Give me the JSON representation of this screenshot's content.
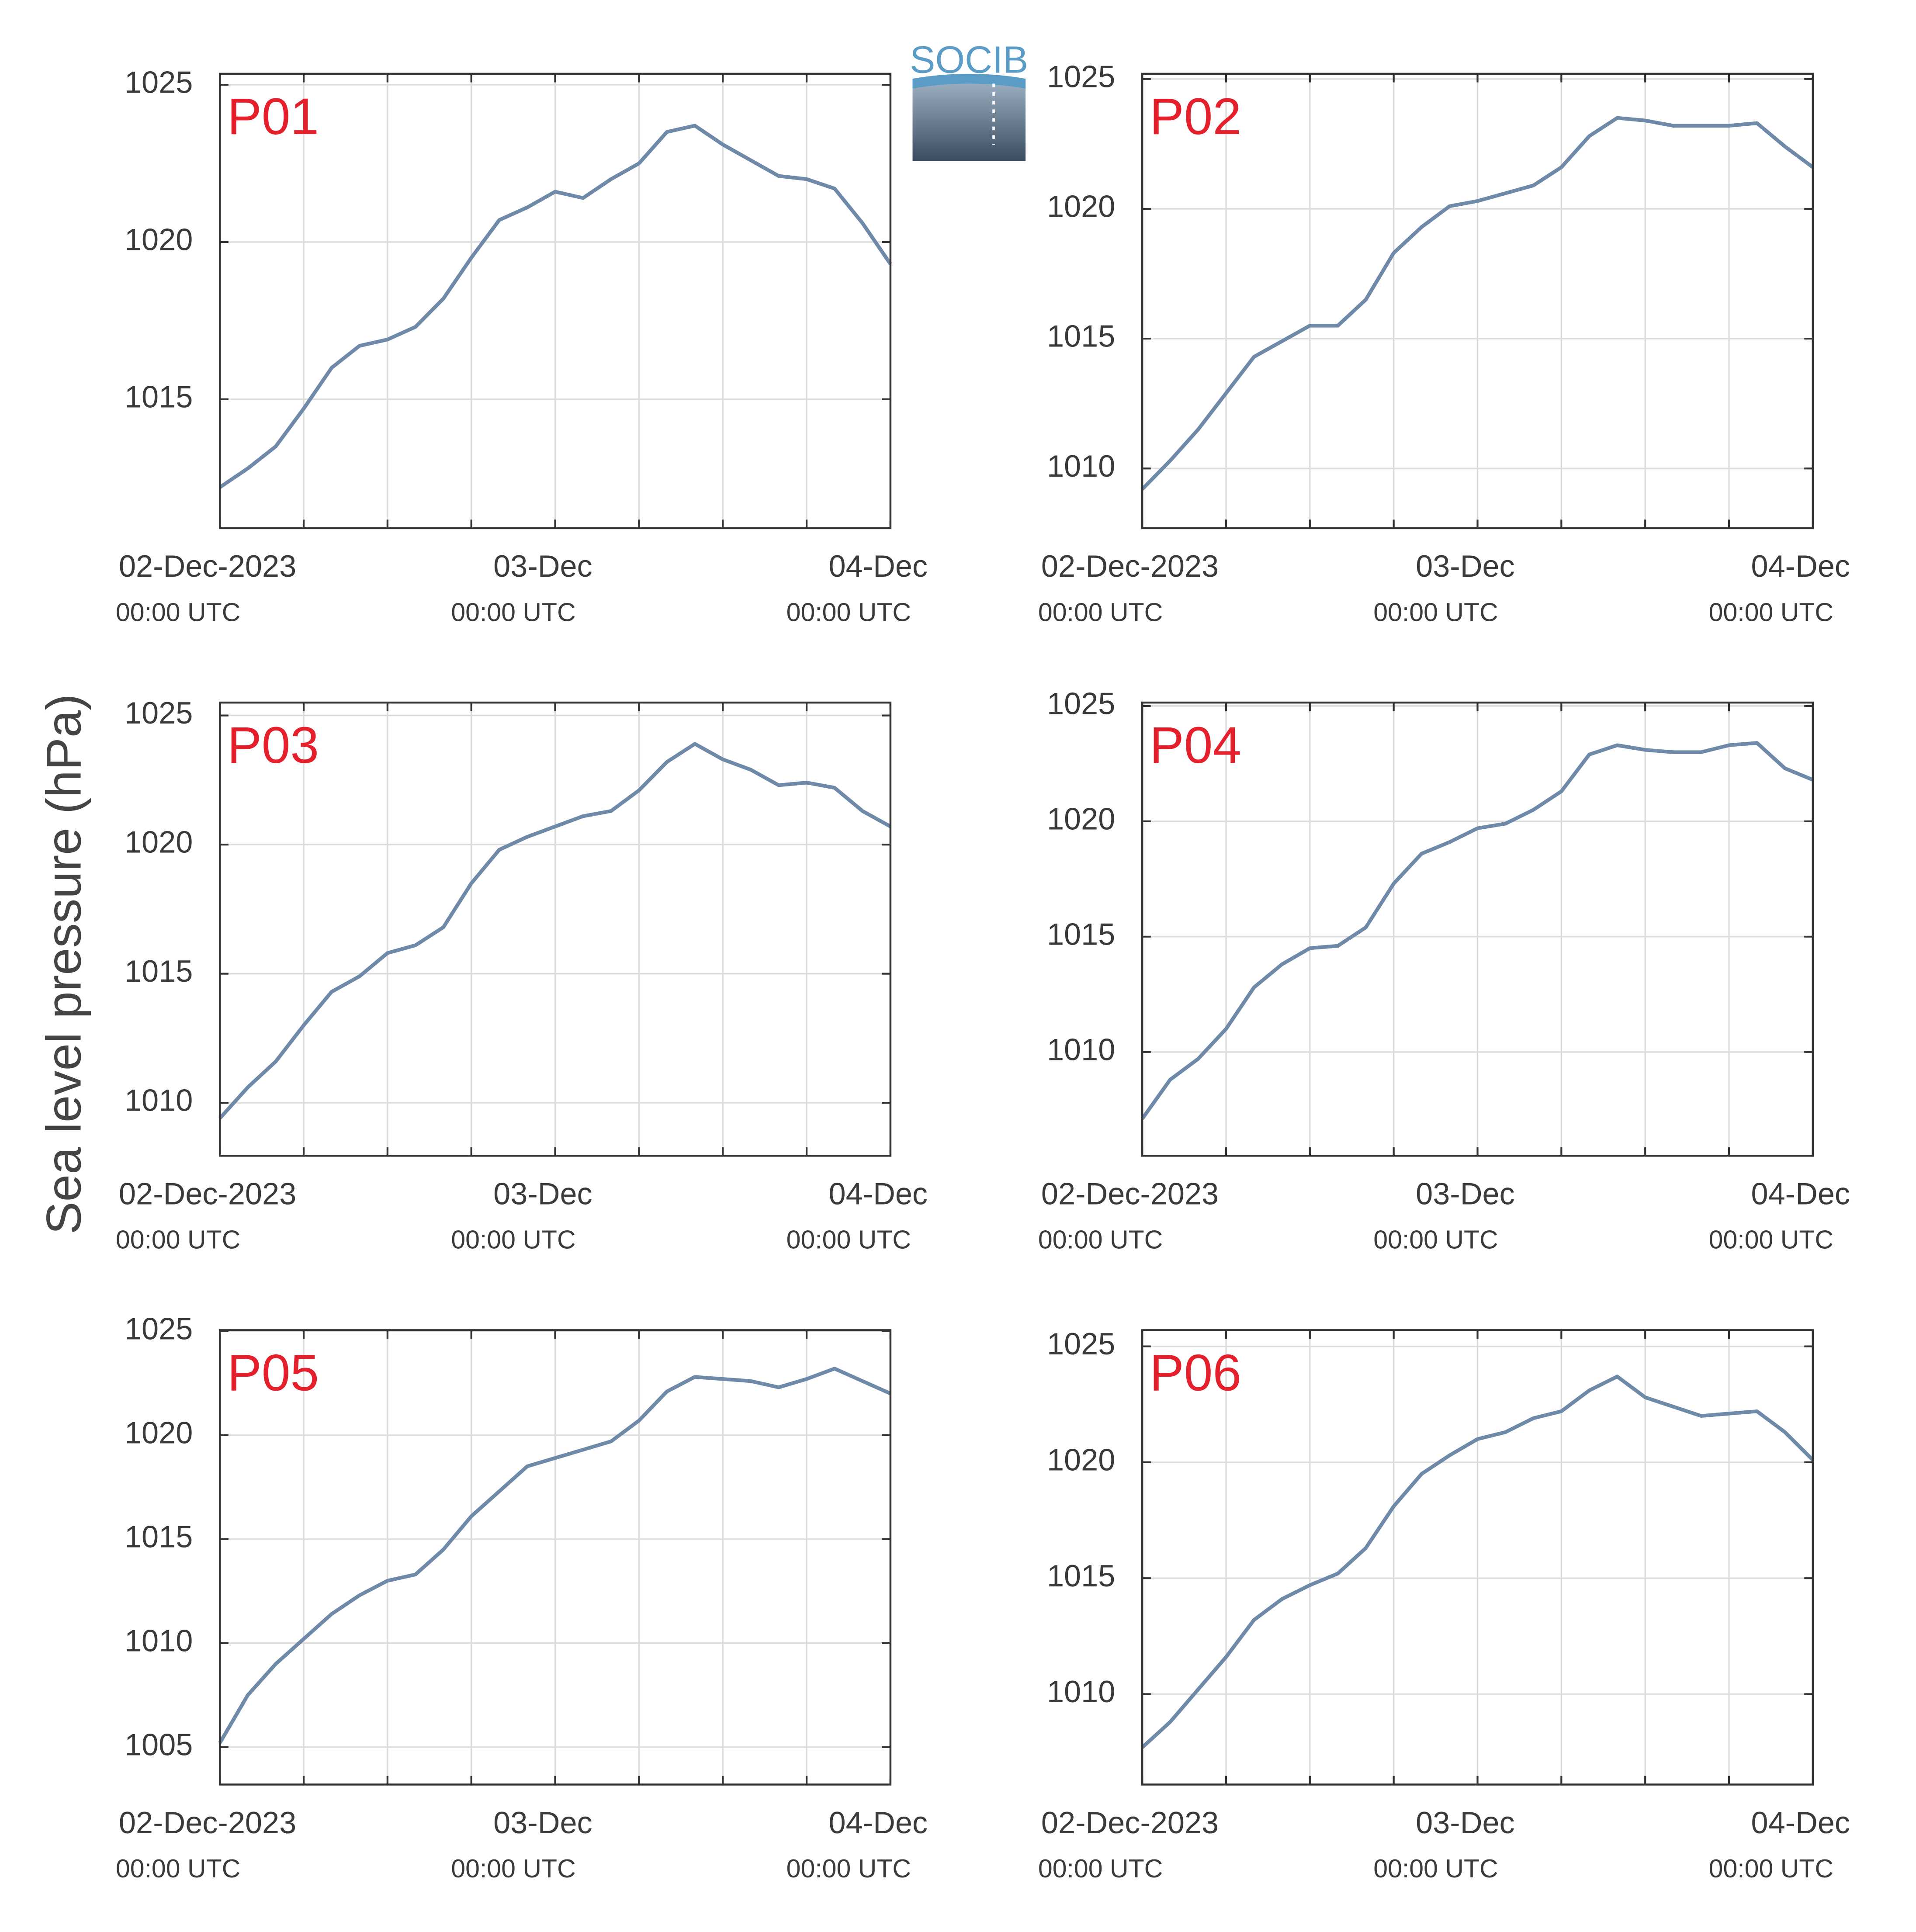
{
  "ylabel": "Sea level pressure (hPa)",
  "logo": "SOCIB",
  "chart_data": [
    {
      "type": "line",
      "title": "P01",
      "color": "#6e8aa8",
      "grid": true,
      "x": [
        0,
        2,
        4,
        6,
        8,
        10,
        12,
        14,
        16,
        18,
        20,
        22,
        24,
        26,
        28,
        30,
        32,
        34,
        36,
        38,
        40,
        42,
        44,
        46,
        48
      ],
      "values": [
        1012.2,
        1012.8,
        1013.5,
        1014.7,
        1016.0,
        1016.7,
        1016.9,
        1017.3,
        1018.2,
        1019.5,
        1020.7,
        1021.1,
        1021.6,
        1021.4,
        1022.0,
        1022.5,
        1023.5,
        1023.7,
        1023.1,
        1022.6,
        1022.1,
        1022.0,
        1021.7,
        1020.6,
        1019.3
      ],
      "xlim": [
        0,
        48
      ],
      "xticks": [
        {
          "value": 0,
          "label": "02-Dec-2023",
          "time": "00:00 UTC"
        },
        {
          "value": 6
        },
        {
          "value": 12
        },
        {
          "value": 18
        },
        {
          "value": 24,
          "label": "03-Dec",
          "time": "00:00 UTC"
        },
        {
          "value": 30
        },
        {
          "value": 36
        },
        {
          "value": 42
        },
        {
          "value": 48,
          "label": "04-Dec",
          "time": "00:00 UTC"
        }
      ],
      "ylim": [
        1010.9,
        1025.35
      ],
      "yticks": [
        1015,
        1020,
        1025
      ]
    },
    {
      "type": "line",
      "title": "P02",
      "color": "#6e8aa8",
      "grid": true,
      "x": [
        0,
        2,
        4,
        6,
        8,
        10,
        12,
        14,
        16,
        18,
        20,
        22,
        24,
        26,
        28,
        30,
        32,
        34,
        36,
        38,
        40,
        42,
        44,
        46,
        48
      ],
      "values": [
        1009.2,
        1010.3,
        1011.5,
        1012.9,
        1014.3,
        1014.9,
        1015.5,
        1015.5,
        1016.5,
        1018.3,
        1019.3,
        1020.1,
        1020.3,
        1020.6,
        1020.9,
        1021.6,
        1022.8,
        1023.5,
        1023.4,
        1023.2,
        1023.2,
        1023.2,
        1023.3,
        1022.4,
        1021.6
      ],
      "xlim": [
        0,
        48
      ],
      "xticks": [
        {
          "value": 0,
          "label": "02-Dec-2023",
          "time": "00:00 UTC"
        },
        {
          "value": 6
        },
        {
          "value": 12
        },
        {
          "value": 18
        },
        {
          "value": 24,
          "label": "03-Dec",
          "time": "00:00 UTC"
        },
        {
          "value": 30
        },
        {
          "value": 36
        },
        {
          "value": 42
        },
        {
          "value": 48,
          "label": "04-Dec",
          "time": "00:00 UTC"
        }
      ],
      "ylim": [
        1007.7,
        1025.2
      ],
      "yticks": [
        1010,
        1015,
        1020,
        1025
      ]
    },
    {
      "type": "line",
      "title": "P03",
      "color": "#6e8aa8",
      "grid": true,
      "x": [
        0,
        2,
        4,
        6,
        8,
        10,
        12,
        14,
        16,
        18,
        20,
        22,
        24,
        26,
        28,
        30,
        32,
        34,
        36,
        38,
        40,
        42,
        44,
        46,
        48
      ],
      "values": [
        1009.4,
        1010.6,
        1011.6,
        1013.0,
        1014.3,
        1014.9,
        1015.8,
        1016.1,
        1016.8,
        1018.5,
        1019.8,
        1020.3,
        1020.7,
        1021.1,
        1021.3,
        1022.1,
        1023.2,
        1023.9,
        1023.3,
        1022.9,
        1022.3,
        1022.4,
        1022.2,
        1021.3,
        1020.7
      ],
      "xlim": [
        0,
        48
      ],
      "xticks": [
        {
          "value": 0,
          "label": "02-Dec-2023",
          "time": "00:00 UTC"
        },
        {
          "value": 6
        },
        {
          "value": 12
        },
        {
          "value": 18
        },
        {
          "value": 24,
          "label": "03-Dec",
          "time": "00:00 UTC"
        },
        {
          "value": 30
        },
        {
          "value": 36
        },
        {
          "value": 42
        },
        {
          "value": 48,
          "label": "04-Dec",
          "time": "00:00 UTC"
        }
      ],
      "ylim": [
        1007.95,
        1025.5
      ],
      "yticks": [
        1010,
        1015,
        1020,
        1025
      ]
    },
    {
      "type": "line",
      "title": "P04",
      "color": "#6e8aa8",
      "grid": true,
      "x": [
        0,
        2,
        4,
        6,
        8,
        10,
        12,
        14,
        16,
        18,
        20,
        22,
        24,
        26,
        28,
        30,
        32,
        34,
        36,
        38,
        40,
        42,
        44,
        46,
        48
      ],
      "values": [
        1007.1,
        1008.8,
        1009.7,
        1011.0,
        1012.8,
        1013.8,
        1014.5,
        1014.6,
        1015.4,
        1017.3,
        1018.6,
        1019.1,
        1019.7,
        1019.9,
        1020.5,
        1021.3,
        1022.9,
        1023.3,
        1023.1,
        1023.0,
        1023.0,
        1023.3,
        1023.4,
        1022.3,
        1021.8
      ],
      "xlim": [
        0,
        48
      ],
      "xticks": [
        {
          "value": 0,
          "label": "02-Dec-2023",
          "time": "00:00 UTC"
        },
        {
          "value": 6
        },
        {
          "value": 12
        },
        {
          "value": 18
        },
        {
          "value": 24,
          "label": "03-Dec",
          "time": "00:00 UTC"
        },
        {
          "value": 30
        },
        {
          "value": 36
        },
        {
          "value": 42
        },
        {
          "value": 48,
          "label": "04-Dec",
          "time": "00:00 UTC"
        }
      ],
      "ylim": [
        1005.5,
        1025.15
      ],
      "yticks": [
        1010,
        1015,
        1020,
        1025
      ]
    },
    {
      "type": "line",
      "title": "P05",
      "color": "#6e8aa8",
      "grid": true,
      "x": [
        0,
        2,
        4,
        6,
        8,
        10,
        12,
        14,
        16,
        18,
        20,
        22,
        24,
        26,
        28,
        30,
        32,
        34,
        36,
        38,
        40,
        42,
        44,
        46,
        48
      ],
      "values": [
        1005.2,
        1007.5,
        1009.0,
        1010.2,
        1011.4,
        1012.3,
        1013.0,
        1013.3,
        1014.5,
        1016.1,
        1017.3,
        1018.5,
        1018.9,
        1019.3,
        1019.7,
        1020.7,
        1022.1,
        1022.8,
        1022.7,
        1022.6,
        1022.3,
        1022.7,
        1023.2,
        1022.6,
        1022.0
      ],
      "xlim": [
        0,
        48
      ],
      "xticks": [
        {
          "value": 0,
          "label": "02-Dec-2023",
          "time": "00:00 UTC"
        },
        {
          "value": 6
        },
        {
          "value": 12
        },
        {
          "value": 18
        },
        {
          "value": 24,
          "label": "03-Dec",
          "time": "00:00 UTC"
        },
        {
          "value": 30
        },
        {
          "value": 36
        },
        {
          "value": 42
        },
        {
          "value": 48,
          "label": "04-Dec",
          "time": "00:00 UTC"
        }
      ],
      "ylim": [
        1003.2,
        1025.05
      ],
      "yticks": [
        1005,
        1010,
        1015,
        1020,
        1025
      ]
    },
    {
      "type": "line",
      "title": "P06",
      "color": "#6e8aa8",
      "grid": true,
      "x": [
        0,
        2,
        4,
        6,
        8,
        10,
        12,
        14,
        16,
        18,
        20,
        22,
        24,
        26,
        28,
        30,
        32,
        34,
        36,
        38,
        40,
        42,
        44,
        46,
        48
      ],
      "values": [
        1007.7,
        1008.8,
        1010.2,
        1011.6,
        1013.2,
        1014.1,
        1014.7,
        1015.2,
        1016.3,
        1018.1,
        1019.5,
        1020.3,
        1021.0,
        1021.3,
        1021.9,
        1022.2,
        1023.1,
        1023.7,
        1022.8,
        1022.4,
        1022.0,
        1022.1,
        1022.2,
        1021.3,
        1020.1
      ],
      "xlim": [
        0,
        48
      ],
      "xticks": [
        {
          "value": 0,
          "label": "02-Dec-2023",
          "time": "00:00 UTC"
        },
        {
          "value": 6
        },
        {
          "value": 12
        },
        {
          "value": 18
        },
        {
          "value": 24,
          "label": "03-Dec",
          "time": "00:00 UTC"
        },
        {
          "value": 30
        },
        {
          "value": 36
        },
        {
          "value": 42
        },
        {
          "value": 48,
          "label": "04-Dec",
          "time": "00:00 UTC"
        }
      ],
      "ylim": [
        1006.1,
        1025.7
      ],
      "yticks": [
        1010,
        1015,
        1020,
        1025
      ]
    }
  ]
}
